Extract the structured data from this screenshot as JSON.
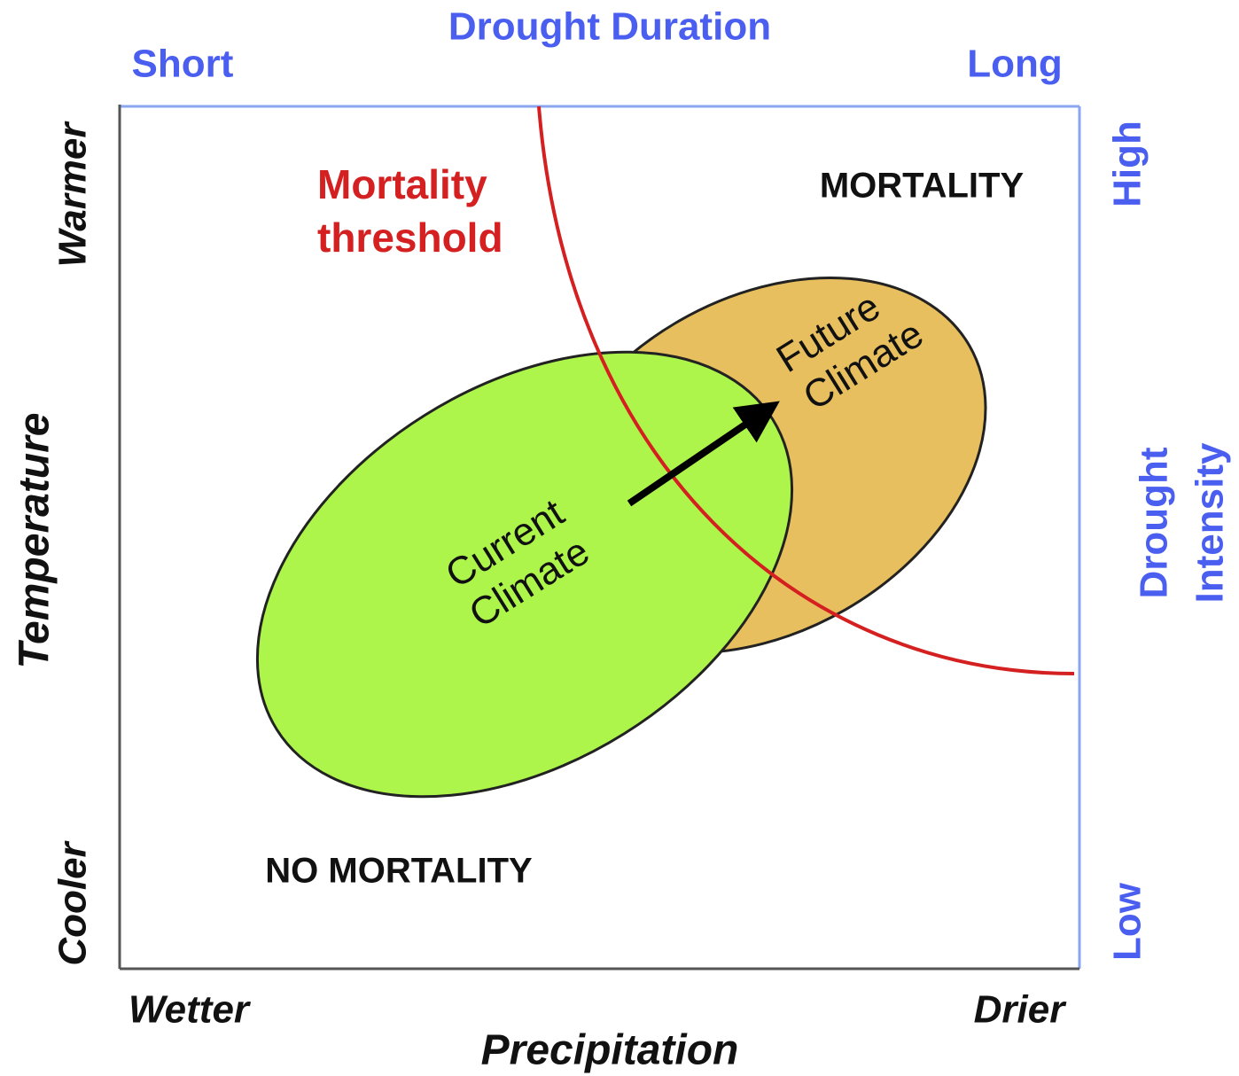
{
  "top_axis": {
    "title": "Drought Duration",
    "start": "Short",
    "end": "Long"
  },
  "right_axis": {
    "title_lines": [
      "Drought",
      "Intensity"
    ],
    "start": "Low",
    "end": "High"
  },
  "left_axis": {
    "title": "Temperature",
    "start": "Cooler",
    "end": "Warmer"
  },
  "bottom_axis": {
    "title": "Precipitation",
    "start": "Wetter",
    "end": "Drier"
  },
  "threshold_label": [
    "Mortality",
    "threshold"
  ],
  "regions": {
    "mortality": "MORTALITY",
    "no_mortality": "NO MORTALITY"
  },
  "current_climate": [
    "Current",
    "Climate"
  ],
  "future_climate": [
    "Future",
    "Climate"
  ]
}
